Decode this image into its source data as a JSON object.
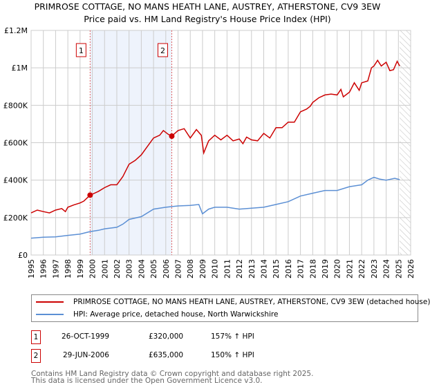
{
  "chart_data": {
    "type": "line",
    "title": "PRIMROSE COTTAGE, NO MANS HEATH LANE, AUSTREY, ATHERSTONE, CV9 3EW",
    "subtitle": "Price paid vs. HM Land Registry's House Price Index (HPI)",
    "xlim": [
      1995,
      2026
    ],
    "ylim": [
      0,
      1200000
    ],
    "x_ticks": [
      "1995",
      "1996",
      "1997",
      "1998",
      "1999",
      "2000",
      "2001",
      "2002",
      "2003",
      "2004",
      "2005",
      "2006",
      "2007",
      "2008",
      "2009",
      "2010",
      "2011",
      "2012",
      "2013",
      "2014",
      "2015",
      "2016",
      "2017",
      "2018",
      "2019",
      "2020",
      "2021",
      "2022",
      "2023",
      "2024",
      "2025",
      "2026"
    ],
    "y_ticks": [
      {
        "v": 0,
        "label": "£0"
      },
      {
        "v": 200000,
        "label": "£200K"
      },
      {
        "v": 400000,
        "label": "£400K"
      },
      {
        "v": 600000,
        "label": "£600K"
      },
      {
        "v": 800000,
        "label": "£800K"
      },
      {
        "v": 1000000,
        "label": "£1M"
      },
      {
        "v": 1200000,
        "label": "£1.2M"
      }
    ],
    "shaded_range": [
      1999.82,
      2006.49
    ],
    "forecast_hatch_from": 2025.1,
    "series": [
      {
        "name": "PRIMROSE COTTAGE, NO MANS HEATH LANE, AUSTREY, ATHERSTONE, CV9 3EW (detached house)",
        "color": "#cc0000",
        "x": [
          1995,
          1995.5,
          1996,
          1996.5,
          1997,
          1997.5,
          1997.8,
          1998,
          1998.5,
          1999,
          1999.3,
          1999.82,
          2000,
          2000.5,
          2001,
          2001.5,
          2002,
          2002.5,
          2003,
          2003.5,
          2004,
          2004.5,
          2005,
          2005.5,
          2005.8,
          2006.2,
          2006.49,
          2007,
          2007.5,
          2008,
          2008.5,
          2008.9,
          2009.1,
          2009.5,
          2010,
          2010.5,
          2011,
          2011.5,
          2012,
          2012.3,
          2012.6,
          2013,
          2013.5,
          2014,
          2014.5,
          2015,
          2015.5,
          2016,
          2016.5,
          2017,
          2017.5,
          2017.8,
          2018,
          2018.5,
          2019,
          2019.5,
          2020,
          2020.3,
          2020.5,
          2021,
          2021.4,
          2021.8,
          2022,
          2022.5,
          2022.8,
          2023,
          2023.3,
          2023.6,
          2024,
          2024.3,
          2024.6,
          2024.9,
          2025.1
        ],
        "y": [
          225000,
          240000,
          232000,
          225000,
          240000,
          248000,
          232000,
          255000,
          268000,
          278000,
          288000,
          320000,
          325000,
          340000,
          360000,
          375000,
          375000,
          420000,
          485000,
          505000,
          535000,
          580000,
          625000,
          640000,
          665000,
          645000,
          635000,
          665000,
          675000,
          625000,
          670000,
          640000,
          545000,
          610000,
          640000,
          615000,
          640000,
          610000,
          620000,
          595000,
          630000,
          615000,
          610000,
          650000,
          625000,
          680000,
          680000,
          710000,
          710000,
          765000,
          780000,
          795000,
          815000,
          840000,
          855000,
          860000,
          855000,
          885000,
          845000,
          870000,
          920000,
          880000,
          920000,
          930000,
          1000000,
          1010000,
          1040000,
          1010000,
          1030000,
          985000,
          990000,
          1035000,
          1010000
        ]
      },
      {
        "name": "HPI: Average price, detached house, North Warwickshire",
        "color": "#5b8fd4",
        "x": [
          1995,
          1996,
          1997,
          1998,
          1999,
          1999.82,
          2000.5,
          2001,
          2002,
          2002.5,
          2003,
          2004,
          2005,
          2006,
          2007,
          2008,
          2008.7,
          2009,
          2009.5,
          2010,
          2011,
          2012,
          2013,
          2014,
          2015,
          2016,
          2017,
          2018,
          2019,
          2020,
          2021,
          2022,
          2022.5,
          2023,
          2023.5,
          2024,
          2024.7,
          2025.1
        ],
        "y": [
          90000,
          95000,
          97000,
          105000,
          112000,
          125000,
          132000,
          140000,
          148000,
          165000,
          190000,
          205000,
          245000,
          255000,
          262000,
          265000,
          270000,
          220000,
          245000,
          255000,
          255000,
          245000,
          250000,
          255000,
          270000,
          285000,
          315000,
          330000,
          345000,
          345000,
          365000,
          375000,
          400000,
          415000,
          405000,
          400000,
          410000,
          403000
        ]
      }
    ],
    "sales": [
      {
        "n": "1",
        "date": "26-OCT-1999",
        "x": 1999.82,
        "price": "£320,000",
        "value": 320000,
        "hpi": "157% ↑ HPI"
      },
      {
        "n": "2",
        "date": "29-JUN-2006",
        "x": 2006.49,
        "price": "£635,000",
        "value": 635000,
        "hpi": "150% ↑ HPI"
      }
    ]
  },
  "legend": {
    "red": "PRIMROSE COTTAGE, NO MANS HEATH LANE, AUSTREY, ATHERSTONE, CV9 3EW (detached house)",
    "blue": "HPI: Average price, detached house, North Warwickshire"
  },
  "footer": {
    "line1": "Contains HM Land Registry data © Crown copyright and database right 2025.",
    "line2": "This data is licensed under the Open Government Licence v3.0."
  }
}
